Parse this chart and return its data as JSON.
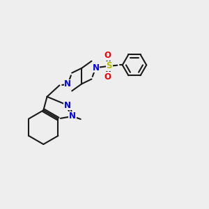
{
  "bg_color": "#eeeeee",
  "bond_color": "#1a1a1a",
  "N_color": "#0000ee",
  "S_color": "#bbbb00",
  "O_color": "#ee0000",
  "bond_lw": 1.5,
  "figsize": [
    3.0,
    3.0
  ],
  "dpi": 100,
  "fs": 8.5,
  "xlim": [
    0.0,
    10.0
  ],
  "ylim": [
    1.5,
    9.0
  ]
}
